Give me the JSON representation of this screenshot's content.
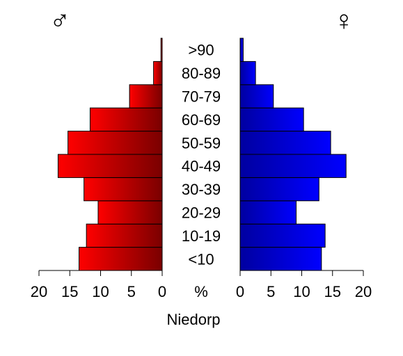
{
  "chart_data": {
    "type": "bar",
    "title": "Niedorp",
    "unit_label": "%",
    "male_symbol": "♂",
    "female_symbol": "♀",
    "categories": [
      "<10",
      "10-19",
      "20-29",
      "30-39",
      "40-49",
      "50-59",
      "60-69",
      "70-79",
      "80-89",
      ">90"
    ],
    "series": [
      {
        "name": "♂",
        "values": [
          13.5,
          12.3,
          10.4,
          12.7,
          16.9,
          15.3,
          11.7,
          5.3,
          1.4,
          0.2
        ]
      },
      {
        "name": "♀",
        "values": [
          13.2,
          13.8,
          9.1,
          12.8,
          17.2,
          14.7,
          10.3,
          5.4,
          2.5,
          0.5
        ]
      }
    ],
    "xlim": [
      0,
      20
    ],
    "ticks": [
      20,
      15,
      10,
      5,
      0
    ],
    "colors": {
      "male_light": "#ff0000",
      "male_dark": "#7a0000",
      "female_dark": "#0000a0",
      "female_light": "#0000ff"
    }
  }
}
